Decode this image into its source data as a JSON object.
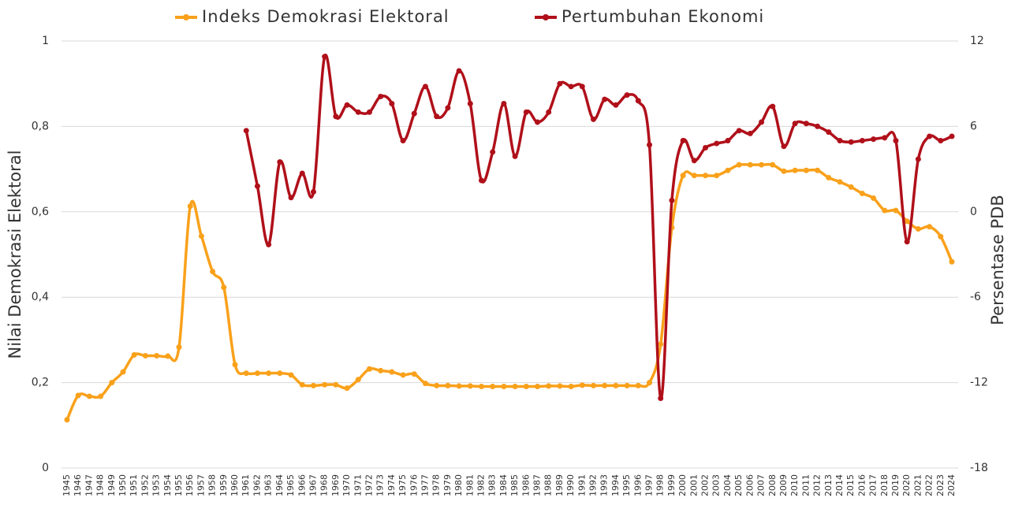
{
  "chart_data": {
    "type": "line",
    "x": [
      1945,
      1946,
      1947,
      1948,
      1949,
      1950,
      1951,
      1952,
      1953,
      1954,
      1955,
      1956,
      1957,
      1958,
      1959,
      1960,
      1961,
      1962,
      1963,
      1964,
      1965,
      1966,
      1967,
      1968,
      1969,
      1970,
      1971,
      1972,
      1973,
      1974,
      1975,
      1976,
      1977,
      1978,
      1979,
      1980,
      1981,
      1982,
      1983,
      1984,
      1985,
      1986,
      1987,
      1988,
      1989,
      1990,
      1991,
      1992,
      1993,
      1994,
      1995,
      1996,
      1997,
      1998,
      1999,
      2000,
      2001,
      2002,
      2003,
      2004,
      2005,
      2006,
      2007,
      2008,
      2009,
      2010,
      2011,
      2012,
      2013,
      2014,
      2015,
      2016,
      2017,
      2018,
      2019,
      2020,
      2021,
      2022,
      2023,
      2024
    ],
    "series": [
      {
        "name": "Indeks Demokrasi Elektoral",
        "color": "#f9a11b",
        "values": [
          0.113,
          0.17,
          0.168,
          0.168,
          0.2,
          0.225,
          0.265,
          0.263,
          0.263,
          0.262,
          0.283,
          0.613,
          0.543,
          0.46,
          0.423,
          0.242,
          0.222,
          0.222,
          0.222,
          0.222,
          0.218,
          0.195,
          0.193,
          0.195,
          0.195,
          0.187,
          0.207,
          0.232,
          0.228,
          0.225,
          0.218,
          0.22,
          0.198,
          0.193,
          0.193,
          0.192,
          0.192,
          0.191,
          0.191,
          0.191,
          0.191,
          0.191,
          0.191,
          0.192,
          0.192,
          0.191,
          0.194,
          0.193,
          0.193,
          0.193,
          0.193,
          0.193,
          0.2,
          0.29,
          0.563,
          0.685,
          0.685,
          0.685,
          0.685,
          0.697,
          0.71,
          0.71,
          0.71,
          0.71,
          0.695,
          0.697,
          0.697,
          0.697,
          0.68,
          0.67,
          0.658,
          0.643,
          0.632,
          0.603,
          0.603,
          0.578,
          0.56,
          0.565,
          0.542,
          0.483
        ]
      },
      {
        "name": "Pertumbuhan Ekonomi",
        "color": "#b0101a",
        "axis": "y2",
        "values": [
          null,
          null,
          null,
          null,
          null,
          null,
          null,
          null,
          null,
          null,
          null,
          null,
          null,
          null,
          null,
          null,
          5.7,
          1.8,
          -2.3,
          3.5,
          1.0,
          2.7,
          1.4,
          10.9,
          6.7,
          7.5,
          7.0,
          7.0,
          8.1,
          7.6,
          5.0,
          6.9,
          8.8,
          6.7,
          7.3,
          9.9,
          7.6,
          2.2,
          4.2,
          7.6,
          3.9,
          7.0,
          6.3,
          7.0,
          9.0,
          8.8,
          8.8,
          6.5,
          7.9,
          7.5,
          8.2,
          7.8,
          4.7,
          -13.1,
          0.8,
          5.0,
          3.6,
          4.5,
          4.8,
          5.0,
          5.7,
          5.5,
          6.3,
          7.4,
          4.6,
          6.2,
          6.2,
          6.0,
          5.6,
          5.0,
          4.9,
          5.0,
          5.1,
          5.2,
          5.0,
          -2.1,
          3.7,
          5.3,
          5.0,
          5.3
        ]
      }
    ],
    "ylabel": "Nilai Demokrasi Elektoral",
    "y2label": "Persentase PDB",
    "ylim": [
      0,
      1
    ],
    "yticks": [
      0,
      {
        "value": 0.2,
        "label": "0,2"
      },
      {
        "value": 0.4,
        "label": "0,4"
      },
      {
        "value": 0.6,
        "label": "0,6"
      },
      {
        "value": 0.8,
        "label": "0,8"
      },
      1
    ],
    "y2lim": [
      -18,
      12
    ],
    "y2ticks": [
      -18,
      -12,
      -6,
      0,
      6,
      12
    ],
    "grid": true,
    "legend": "top"
  }
}
